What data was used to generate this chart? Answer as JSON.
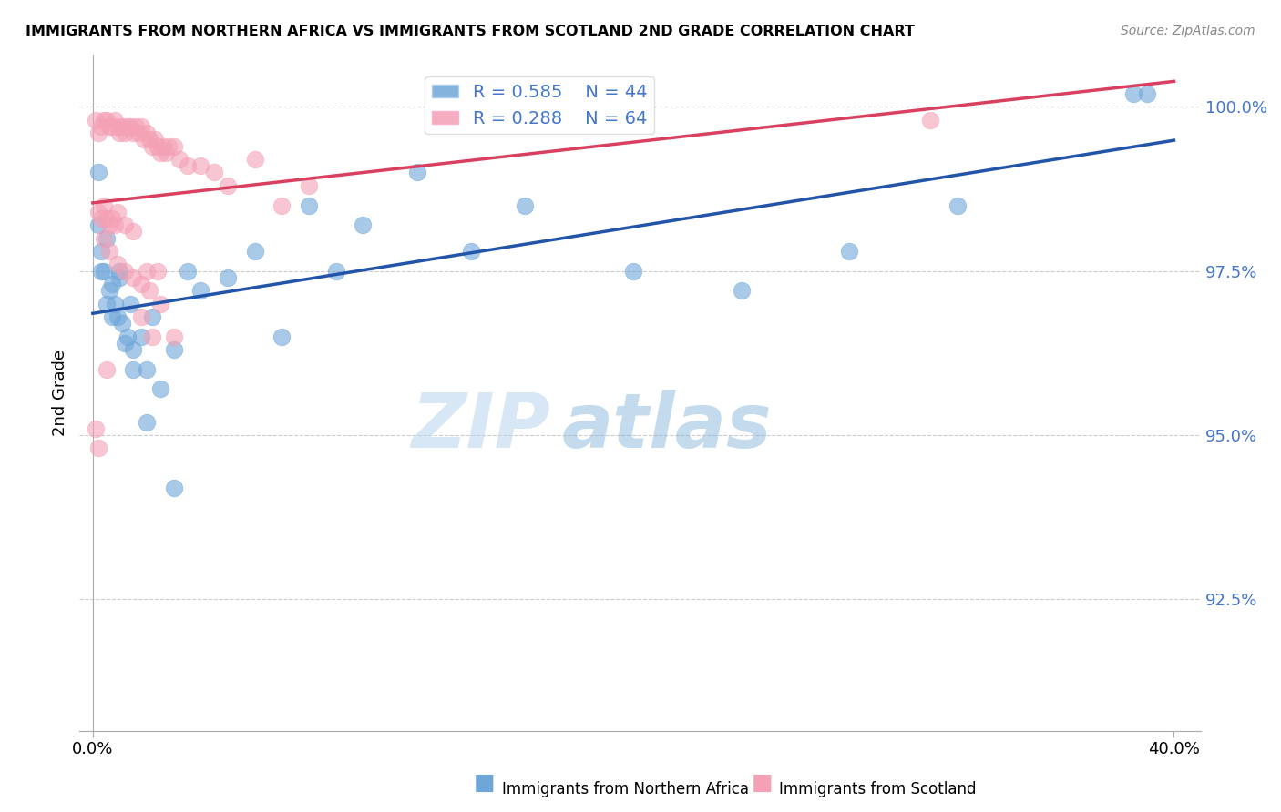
{
  "title": "IMMIGRANTS FROM NORTHERN AFRICA VS IMMIGRANTS FROM SCOTLAND 2ND GRADE CORRELATION CHART",
  "source": "Source: ZipAtlas.com",
  "ylabel": "2nd Grade",
  "ytick_labels": [
    "100.0%",
    "97.5%",
    "95.0%",
    "92.5%"
  ],
  "ytick_values": [
    1.0,
    0.975,
    0.95,
    0.925
  ],
  "xlim": [
    0.0,
    0.4
  ],
  "ylim": [
    0.905,
    1.008
  ],
  "legend_blue_r": "0.585",
  "legend_blue_n": "44",
  "legend_pink_r": "0.288",
  "legend_pink_n": "64",
  "blue_color": "#6ea6d8",
  "pink_color": "#f4a0b5",
  "blue_line_color": "#2255aa",
  "pink_line_color": "#d94060",
  "watermark_zip": "ZIP",
  "watermark_atlas": "atlas",
  "blue_scatter_x": [
    0.002,
    0.003,
    0.004,
    0.005,
    0.006,
    0.007,
    0.008,
    0.009,
    0.01,
    0.011,
    0.012,
    0.013,
    0.014,
    0.015,
    0.018,
    0.02,
    0.022,
    0.025,
    0.03,
    0.035,
    0.04,
    0.05,
    0.06,
    0.07,
    0.08,
    0.09,
    0.1,
    0.12,
    0.14,
    0.16,
    0.2,
    0.24,
    0.28,
    0.32,
    0.385,
    0.002,
    0.003,
    0.005,
    0.007,
    0.01,
    0.015,
    0.02,
    0.03,
    0.39
  ],
  "blue_scatter_y": [
    0.982,
    0.978,
    0.975,
    0.98,
    0.972,
    0.973,
    0.97,
    0.968,
    0.974,
    0.967,
    0.964,
    0.965,
    0.97,
    0.963,
    0.965,
    0.96,
    0.968,
    0.957,
    0.963,
    0.975,
    0.972,
    0.974,
    0.978,
    0.965,
    0.985,
    0.975,
    0.982,
    0.99,
    0.978,
    0.985,
    0.975,
    0.972,
    0.978,
    0.985,
    1.002,
    0.99,
    0.975,
    0.97,
    0.968,
    0.975,
    0.96,
    0.952,
    0.942,
    1.002
  ],
  "pink_scatter_x": [
    0.001,
    0.002,
    0.003,
    0.004,
    0.005,
    0.006,
    0.007,
    0.008,
    0.009,
    0.01,
    0.011,
    0.012,
    0.013,
    0.014,
    0.015,
    0.016,
    0.017,
    0.018,
    0.019,
    0.02,
    0.021,
    0.022,
    0.023,
    0.024,
    0.025,
    0.026,
    0.027,
    0.028,
    0.03,
    0.032,
    0.035,
    0.04,
    0.045,
    0.05,
    0.06,
    0.07,
    0.08,
    0.002,
    0.003,
    0.004,
    0.005,
    0.006,
    0.007,
    0.008,
    0.009,
    0.012,
    0.015,
    0.02,
    0.025,
    0.03,
    0.004,
    0.006,
    0.009,
    0.012,
    0.015,
    0.018,
    0.021,
    0.024,
    0.018,
    0.022,
    0.001,
    0.002,
    0.005,
    0.31
  ],
  "pink_scatter_y": [
    0.998,
    0.996,
    0.997,
    0.998,
    0.998,
    0.997,
    0.997,
    0.998,
    0.997,
    0.996,
    0.997,
    0.996,
    0.997,
    0.997,
    0.996,
    0.997,
    0.996,
    0.997,
    0.995,
    0.996,
    0.995,
    0.994,
    0.995,
    0.994,
    0.993,
    0.994,
    0.993,
    0.994,
    0.994,
    0.992,
    0.991,
    0.991,
    0.99,
    0.988,
    0.992,
    0.985,
    0.988,
    0.984,
    0.983,
    0.985,
    0.983,
    0.982,
    0.983,
    0.982,
    0.984,
    0.982,
    0.981,
    0.975,
    0.97,
    0.965,
    0.98,
    0.978,
    0.976,
    0.975,
    0.974,
    0.973,
    0.972,
    0.975,
    0.968,
    0.965,
    0.951,
    0.948,
    0.96,
    0.998
  ]
}
